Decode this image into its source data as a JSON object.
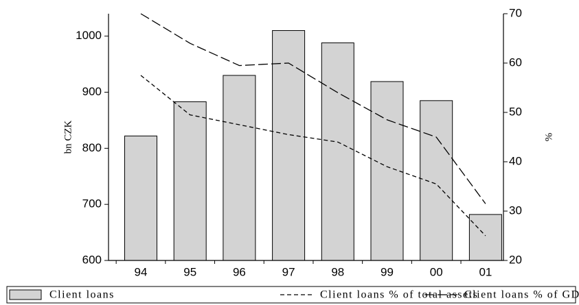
{
  "chart_data": {
    "type": "bar",
    "categories": [
      "94",
      "95",
      "96",
      "97",
      "98",
      "99",
      "00",
      "01"
    ],
    "y_label": "bn CZK",
    "y2_label": "%",
    "ylim": [
      600,
      1040
    ],
    "yticks": [
      600,
      700,
      800,
      900,
      1000
    ],
    "y2lim": [
      20,
      70
    ],
    "y2ticks": [
      20,
      30,
      40,
      50,
      60,
      70
    ],
    "series": [
      {
        "name": "Client loans",
        "type": "bar",
        "color": "#d3d3d3",
        "values": [
          822,
          883,
          930,
          1010,
          988,
          919,
          885,
          682
        ]
      },
      {
        "name": "Client loans % of total assets",
        "type": "line",
        "dash": "short",
        "axis": "y2",
        "color": "#000000",
        "values": [
          57.5,
          49.5,
          47.5,
          45.5,
          44,
          39,
          35.5,
          25
        ]
      },
      {
        "name": "Client loans % of GDP",
        "type": "line",
        "dash": "long",
        "axis": "y2",
        "color": "#000000",
        "values": [
          70,
          64,
          59.5,
          60,
          54,
          48.5,
          45,
          31.5
        ]
      }
    ]
  }
}
